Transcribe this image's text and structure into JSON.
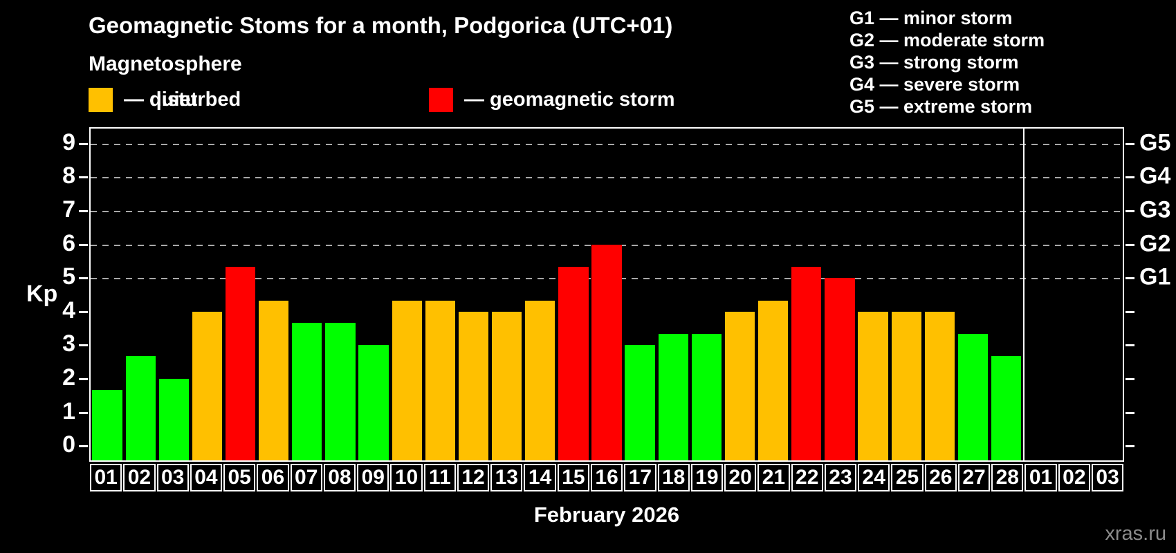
{
  "header": {
    "title": "Geomagnetic Stoms for a month, Podgorica (UTC+01)",
    "subtitle": "Magnetosphere"
  },
  "legend": {
    "items": [
      {
        "key": "quiet",
        "label": "— quiet",
        "color": "#00ff00"
      },
      {
        "key": "disturbed",
        "label": "— disturbed",
        "color": "#ffc000"
      },
      {
        "key": "storm",
        "label": "— geomagnetic storm",
        "color": "#ff0000"
      }
    ]
  },
  "g_scale_legend": [
    "G1 — minor storm",
    "G2 — moderate storm",
    "G3 — strong storm",
    "G4 — severe storm",
    "G5 — extreme storm"
  ],
  "axes": {
    "y_label": "Kp",
    "x_label": "February 2026",
    "left_ticks": [
      "0",
      "1",
      "2",
      "3",
      "4",
      "5",
      "6",
      "7",
      "8",
      "9"
    ],
    "right_labels": [
      {
        "kp": 5,
        "text": "G1"
      },
      {
        "kp": 6,
        "text": "G2"
      },
      {
        "kp": 7,
        "text": "G3"
      },
      {
        "kp": 8,
        "text": "G4"
      },
      {
        "kp": 9,
        "text": "G5"
      }
    ]
  },
  "watermark": "xras.ru",
  "chart_data": {
    "type": "bar",
    "title": "Geomagnetic Stoms for a month, Podgorica (UTC+01)",
    "xlabel": "February 2026",
    "ylabel": "Kp",
    "ylim": [
      0,
      9
    ],
    "yticks": [
      0,
      1,
      2,
      3,
      4,
      5,
      6,
      7,
      8,
      9
    ],
    "grid_kp_levels": [
      5,
      6,
      7,
      8,
      9
    ],
    "legend_position": "top",
    "month_split_after_index": 27,
    "status_colors": {
      "quiet": "#00ff00",
      "disturbed": "#ffc000",
      "storm": "#ff0000"
    },
    "days": [
      {
        "label": "01",
        "kp": 1.67,
        "status": "quiet"
      },
      {
        "label": "02",
        "kp": 2.67,
        "status": "quiet"
      },
      {
        "label": "03",
        "kp": 2.0,
        "status": "quiet"
      },
      {
        "label": "04",
        "kp": 4.0,
        "status": "disturbed"
      },
      {
        "label": "05",
        "kp": 5.33,
        "status": "storm"
      },
      {
        "label": "06",
        "kp": 4.33,
        "status": "disturbed"
      },
      {
        "label": "07",
        "kp": 3.67,
        "status": "quiet"
      },
      {
        "label": "08",
        "kp": 3.67,
        "status": "quiet"
      },
      {
        "label": "09",
        "kp": 3.0,
        "status": "quiet"
      },
      {
        "label": "10",
        "kp": 4.33,
        "status": "disturbed"
      },
      {
        "label": "11",
        "kp": 4.33,
        "status": "disturbed"
      },
      {
        "label": "12",
        "kp": 4.0,
        "status": "disturbed"
      },
      {
        "label": "13",
        "kp": 4.0,
        "status": "disturbed"
      },
      {
        "label": "14",
        "kp": 4.33,
        "status": "disturbed"
      },
      {
        "label": "15",
        "kp": 5.33,
        "status": "storm"
      },
      {
        "label": "16",
        "kp": 6.0,
        "status": "storm"
      },
      {
        "label": "17",
        "kp": 3.0,
        "status": "quiet"
      },
      {
        "label": "18",
        "kp": 3.33,
        "status": "quiet"
      },
      {
        "label": "19",
        "kp": 3.33,
        "status": "quiet"
      },
      {
        "label": "20",
        "kp": 4.0,
        "status": "disturbed"
      },
      {
        "label": "21",
        "kp": 4.33,
        "status": "disturbed"
      },
      {
        "label": "22",
        "kp": 5.33,
        "status": "storm"
      },
      {
        "label": "23",
        "kp": 5.0,
        "status": "storm"
      },
      {
        "label": "24",
        "kp": 4.0,
        "status": "disturbed"
      },
      {
        "label": "25",
        "kp": 4.0,
        "status": "disturbed"
      },
      {
        "label": "26",
        "kp": 4.0,
        "status": "disturbed"
      },
      {
        "label": "27",
        "kp": 3.33,
        "status": "quiet"
      },
      {
        "label": "28",
        "kp": 2.67,
        "status": "quiet"
      },
      {
        "label": "01",
        "kp": null,
        "status": null
      },
      {
        "label": "02",
        "kp": null,
        "status": null
      },
      {
        "label": "03",
        "kp": null,
        "status": null
      }
    ]
  }
}
